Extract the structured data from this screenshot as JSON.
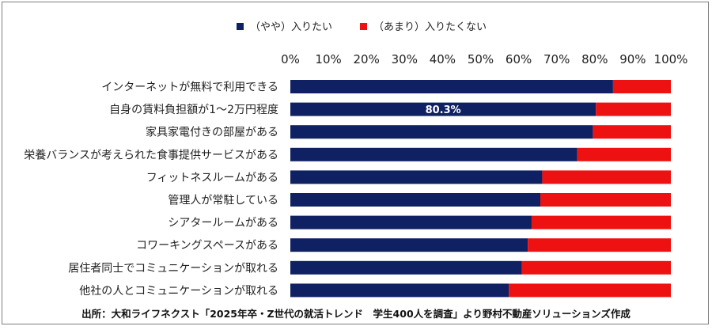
{
  "chart_data": {
    "type": "bar",
    "orientation": "horizontal",
    "stacked": true,
    "categories": [
      "インターネットが無料で利用できる",
      "自身の賃料負担額が1～2万円程度",
      "家具家電付きの部屋がある",
      "栄養バランスが考えられた食事提供サービスがある",
      "フィットネスルームがある",
      "管理人が常駐している",
      "シアタールームがある",
      "コワーキングスペースがある",
      "居住者同士でコミュニケーションが取れる",
      "他社の人とコミュニケーションが取れる"
    ],
    "series": [
      {
        "name": "（やや）入りたい",
        "color": "#0f2163",
        "values": [
          84.8,
          80.3,
          79.5,
          75.4,
          66.2,
          65.7,
          63.4,
          62.4,
          60.8,
          57.4
        ]
      },
      {
        "name": "（あまり）入りたくない",
        "color": "#ee1111",
        "values": [
          15.2,
          19.7,
          20.5,
          24.6,
          33.8,
          34.3,
          36.6,
          37.6,
          39.2,
          42.6
        ]
      }
    ],
    "data_labels": [
      {
        "category_index": 1,
        "series_index": 0,
        "text": "80.3%"
      }
    ],
    "xlim": [
      0,
      100
    ],
    "x_ticks": [
      "0%",
      "10%",
      "20%",
      "30%",
      "40%",
      "50%",
      "60%",
      "70%",
      "80%",
      "90%",
      "100%"
    ],
    "x_axis_position": "top",
    "grid": false,
    "legend_position": "top"
  },
  "source_note": "出所：大和ライフネクスト「2025年卒・Z世代の就活トレンド　学生400人を調査」より野村不動産ソリューションズ作成"
}
